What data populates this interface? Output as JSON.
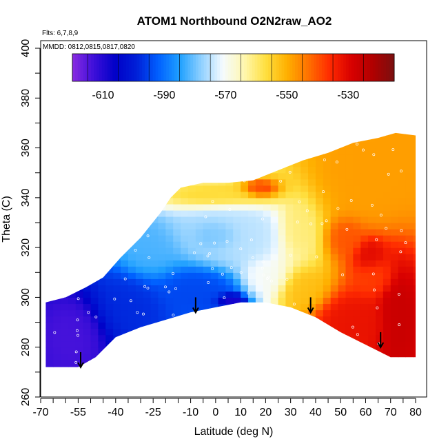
{
  "chart_data": {
    "type": "heatmap",
    "title": "ATOM1 Northbound O2N2raw_AO2",
    "flights_note": "Flts: 6,7,8,9",
    "dates_note": "MMDD: 0812,0815,0817,0820",
    "xlabel": "Latitude (deg N)",
    "ylabel": "Theta (C)",
    "xlim": [
      -70,
      80
    ],
    "ylim": [
      260,
      400
    ],
    "x_ticks": [
      "-70",
      "-55",
      "-40",
      "-25",
      "-10",
      "0",
      "10",
      "20",
      "30",
      "40",
      "50",
      "60",
      "70",
      "80"
    ],
    "y_ticks": [
      "260",
      "280",
      "300",
      "320",
      "340",
      "360",
      "380",
      "400"
    ],
    "colorbar": {
      "range": [
        -620,
        -515
      ],
      "tick_labels": [
        "-610",
        "-590",
        "-570",
        "-550",
        "-530"
      ],
      "colors": [
        "#8a2be2",
        "#3d0fd9",
        "#0000c8",
        "#0020d8",
        "#0060ff",
        "#1fa0ff",
        "#8fd0ff",
        "#f5fbff",
        "#fff7b0",
        "#ffe040",
        "#ffb000",
        "#ff7000",
        "#ff2a00",
        "#d80000",
        "#b00000",
        "#7a1010"
      ]
    },
    "domain_boundary": {
      "upper": [
        [
          -68,
          298
        ],
        [
          -60,
          300
        ],
        [
          -52,
          304
        ],
        [
          -45,
          308
        ],
        [
          -38,
          316
        ],
        [
          -30,
          324
        ],
        [
          -22,
          334
        ],
        [
          -18,
          340
        ],
        [
          -14,
          344
        ],
        [
          -5,
          346
        ],
        [
          5,
          346
        ],
        [
          15,
          347
        ],
        [
          25,
          351
        ],
        [
          35,
          355
        ],
        [
          45,
          358
        ],
        [
          55,
          362
        ],
        [
          65,
          364
        ],
        [
          72,
          366
        ],
        [
          80,
          365
        ]
      ],
      "lower": [
        [
          -68,
          272
        ],
        [
          -55,
          272
        ],
        [
          -48,
          276
        ],
        [
          -40,
          284
        ],
        [
          -30,
          288
        ],
        [
          -20,
          291
        ],
        [
          -10,
          294
        ],
        [
          0,
          296
        ],
        [
          10,
          298
        ],
        [
          20,
          298
        ],
        [
          30,
          296
        ],
        [
          40,
          292
        ],
        [
          50,
          286
        ],
        [
          60,
          281
        ],
        [
          70,
          276
        ],
        [
          80,
          276
        ]
      ],
      "right_edge": [
        [
          80,
          276
        ],
        [
          80,
          365
        ]
      ]
    },
    "regions": [
      {
        "lat": [
          -68,
          -45
        ],
        "theta": [
          272,
          300
        ],
        "value": -614
      },
      {
        "lat": [
          -50,
          -20
        ],
        "theta": [
          284,
          312
        ],
        "value": -598
      },
      {
        "lat": [
          -25,
          10
        ],
        "theta": [
          294,
          312
        ],
        "value": -595
      },
      {
        "lat": [
          0,
          12
        ],
        "theta": [
          296,
          302
        ],
        "value": -612
      },
      {
        "lat": [
          -40,
          -15
        ],
        "theta": [
          306,
          330
        ],
        "value": -582
      },
      {
        "lat": [
          -15,
          30
        ],
        "theta": [
          312,
          340
        ],
        "value": -575
      },
      {
        "lat": [
          -10,
          10
        ],
        "theta": [
          318,
          332
        ],
        "value": -582
      },
      {
        "lat": [
          10,
          30
        ],
        "theta": [
          300,
          316
        ],
        "value": -570
      },
      {
        "lat": [
          -20,
          25
        ],
        "theta": [
          336,
          346
        ],
        "value": -555
      },
      {
        "lat": [
          10,
          25
        ],
        "theta": [
          340,
          347
        ],
        "value": -535
      },
      {
        "lat": [
          25,
          40
        ],
        "theta": [
          316,
          340
        ],
        "value": -560
      },
      {
        "lat": [
          25,
          45
        ],
        "theta": [
          294,
          312
        ],
        "value": -552
      },
      {
        "lat": [
          40,
          80
        ],
        "theta": [
          330,
          366
        ],
        "value": -548
      },
      {
        "lat": [
          45,
          60
        ],
        "theta": [
          316,
          332
        ],
        "value": -540
      },
      {
        "lat": [
          55,
          68
        ],
        "theta": [
          310,
          324
        ],
        "value": -530
      },
      {
        "lat": [
          40,
          70
        ],
        "theta": [
          280,
          302
        ],
        "value": -532
      },
      {
        "lat": [
          65,
          80
        ],
        "theta": [
          276,
          312
        ],
        "value": -526
      },
      {
        "lat": [
          55,
          72
        ],
        "theta": [
          300,
          316
        ],
        "value": -538
      }
    ],
    "arrows": [
      {
        "lat": -54,
        "theta": 278
      },
      {
        "lat": -8,
        "theta": 300
      },
      {
        "lat": 38,
        "theta": 300
      },
      {
        "lat": 66,
        "theta": 286
      }
    ]
  }
}
